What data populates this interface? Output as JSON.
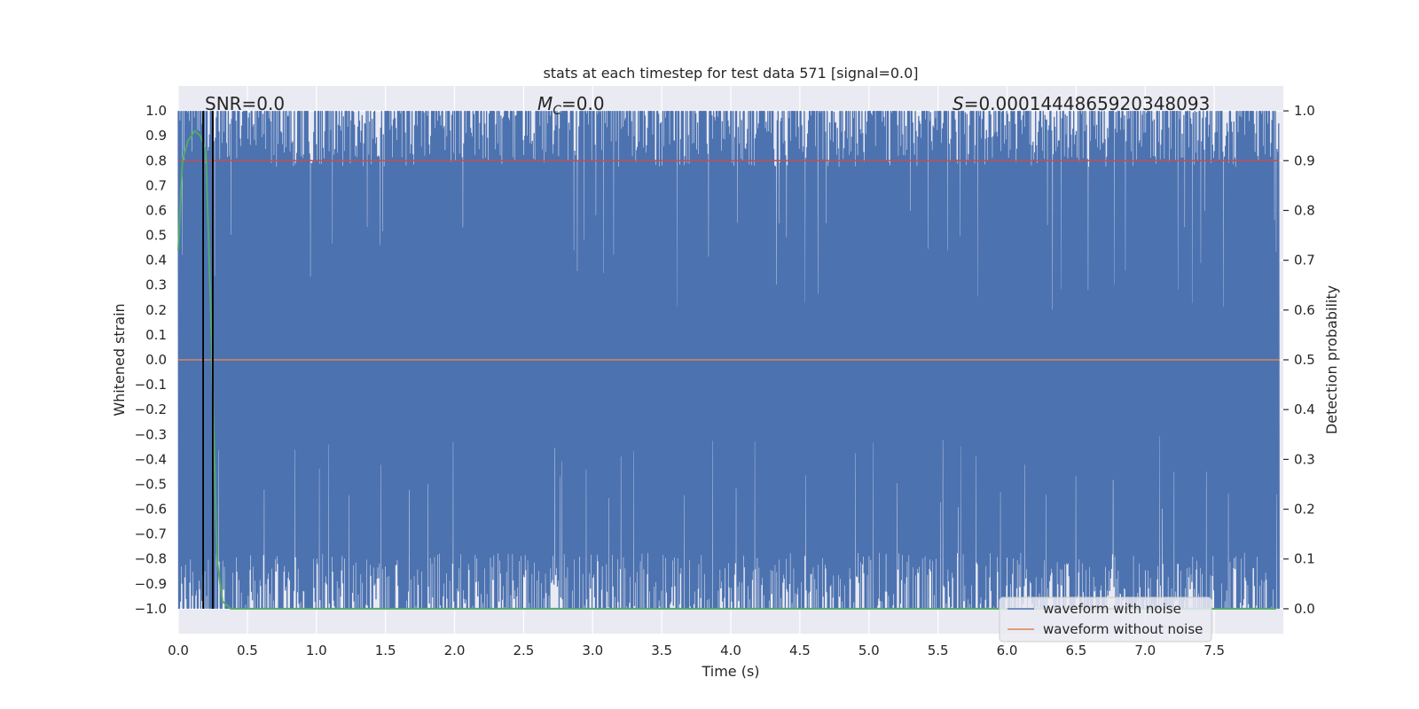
{
  "chart_data": {
    "type": "line",
    "title": "stats at each timestep for test data 571 [signal=0.0]",
    "xlabel": "Time (s)",
    "ylabel": "Whitened strain",
    "y2label": "Detection probability",
    "xlim": [
      0.0,
      8.0
    ],
    "ylim": [
      -1.1,
      1.1
    ],
    "y2lim": [
      -0.05,
      1.05
    ],
    "xticks": [
      "0.0",
      "0.5",
      "1.0",
      "1.5",
      "2.0",
      "2.5",
      "3.0",
      "3.5",
      "4.0",
      "4.5",
      "5.0",
      "5.5",
      "6.0",
      "6.5",
      "7.0",
      "7.5"
    ],
    "yticks": [
      "1.0",
      "0.9",
      "0.8",
      "0.7",
      "0.6",
      "0.5",
      "0.4",
      "0.3",
      "0.2",
      "0.1",
      "0.0",
      "−0.1",
      "−0.2",
      "−0.3",
      "−0.4",
      "−0.5",
      "−0.6",
      "−0.7",
      "−0.8",
      "−0.9",
      "−1.0"
    ],
    "y2ticks": [
      "1.0",
      "0.9",
      "0.8",
      "0.7",
      "0.6",
      "0.5",
      "0.4",
      "0.3",
      "0.2",
      "0.1",
      "0.0"
    ],
    "annotations": {
      "snr": "SNR=0.0",
      "mc_symbol": "M",
      "mc_sub": "C",
      "mc_value": "=0.0",
      "s_symbol": "S",
      "s_value": "=0.0001444865920348093"
    },
    "series": [
      {
        "name": "waveform with noise",
        "color": "#4c72b0",
        "style": "dense noise clipped to [-1, 1], 0.0 to 8.0 s"
      },
      {
        "name": "waveform without noise",
        "color": "#dd8452",
        "values_note": "flat at 0.0",
        "y": 0.0
      },
      {
        "name": "detection probability",
        "color": "#55a868",
        "axis": "right",
        "x": [
          0.0,
          0.03,
          0.07,
          0.12,
          0.16,
          0.2,
          0.24,
          0.28,
          0.32,
          0.38,
          0.5,
          1.0,
          2.0,
          3.0,
          4.0,
          5.0,
          6.0,
          7.0,
          7.95
        ],
        "y": [
          0.72,
          0.9,
          0.94,
          0.96,
          0.95,
          0.92,
          0.55,
          0.1,
          0.015,
          0.0,
          0.0,
          0.0,
          0.0,
          0.0,
          0.0,
          0.0,
          0.0,
          0.0,
          0.0
        ]
      },
      {
        "name": "threshold",
        "color": "#c44e52",
        "axis": "right",
        "y": 0.9
      }
    ],
    "vlines": [
      {
        "x": 0.18,
        "color": "#000000"
      },
      {
        "x": 0.25,
        "color": "#000000"
      }
    ],
    "legend": {
      "position": "lower-right",
      "entries": [
        {
          "label": "waveform with noise",
          "color": "#4c72b0"
        },
        {
          "label": "waveform without noise",
          "color": "#dd8452"
        }
      ]
    },
    "colors": {
      "axes_bg": "#eaeaf2",
      "grid": "#ffffff",
      "noise": "#4c72b0"
    }
  }
}
